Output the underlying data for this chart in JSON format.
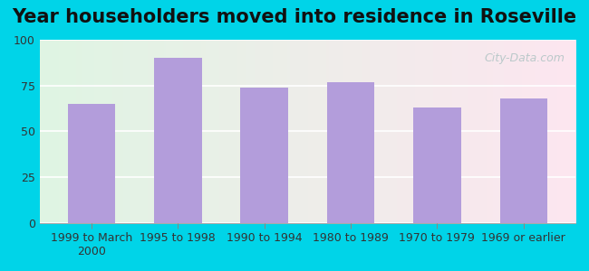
{
  "title": "Year householders moved into residence in Roseville",
  "categories": [
    "1999 to March\n2000",
    "1995 to 1998",
    "1990 to 1994",
    "1980 to 1989",
    "1970 to 1979",
    "1969 or earlier"
  ],
  "values": [
    65,
    90,
    74,
    77,
    63,
    68
  ],
  "bar_color": "#b39ddb",
  "ylim": [
    0,
    100
  ],
  "yticks": [
    0,
    25,
    50,
    75,
    100
  ],
  "title_fontsize": 15,
  "tick_fontsize": 9,
  "background_outer": "#00d4e8",
  "gradient_left": "#dff5e3",
  "gradient_right": "#fde6f0",
  "watermark": "City-Data.com"
}
